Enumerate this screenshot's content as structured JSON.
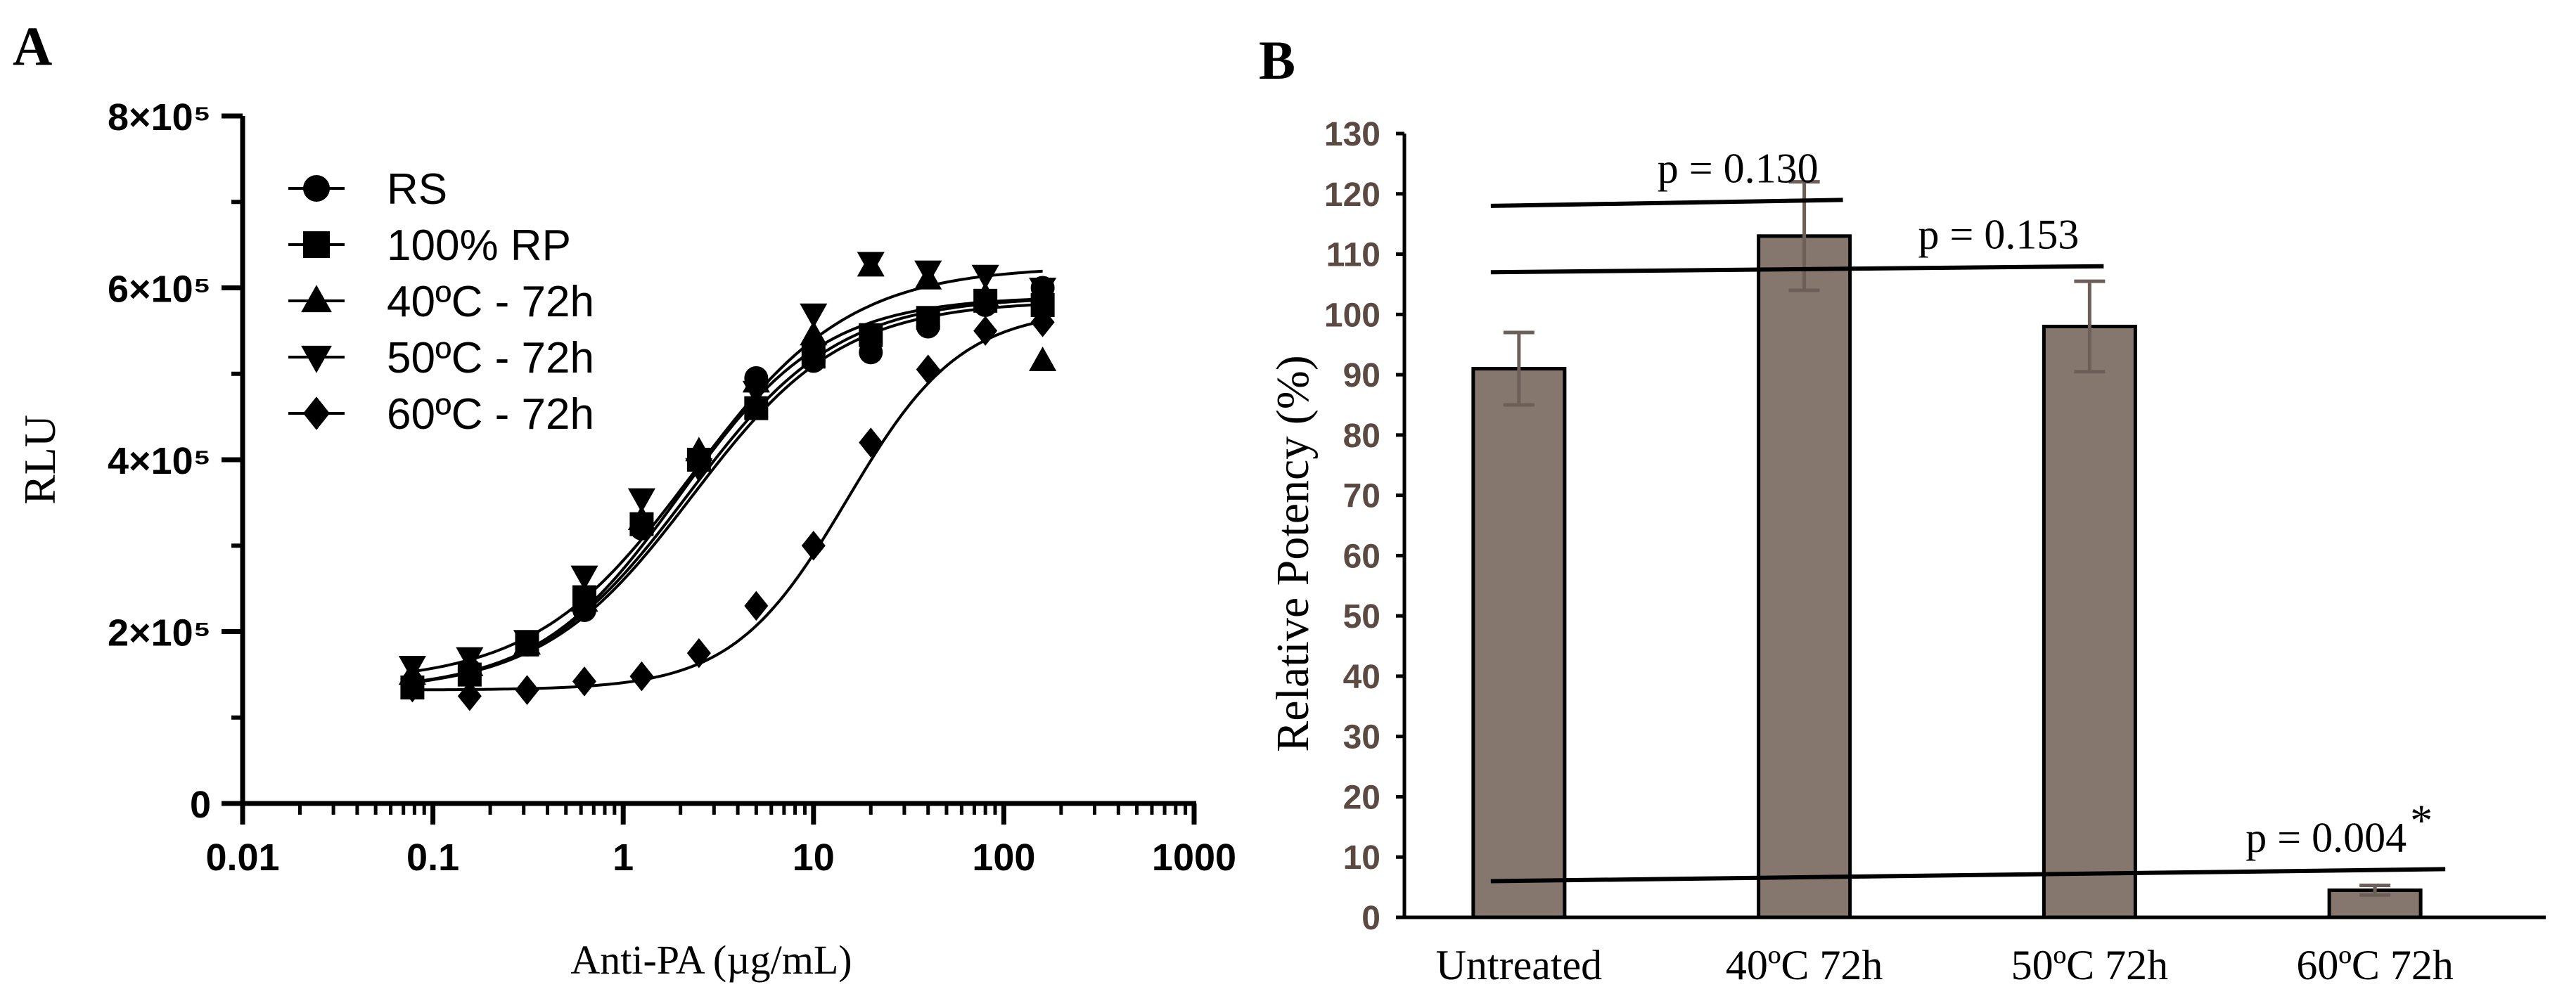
{
  "chart_data": [
    {
      "panel": "A",
      "type": "scatter",
      "xscale": "log",
      "xlabel": "Anti-PA (µg/mL)",
      "ylabel": "RLU",
      "xlim": [
        0.01,
        1000
      ],
      "ylim": [
        0,
        800000
      ],
      "xticks": [
        {
          "value": 0.01,
          "label": "0.01"
        },
        {
          "value": 0.1,
          "label": "0.1"
        },
        {
          "value": 1,
          "label": "1"
        },
        {
          "value": 10,
          "label": "10"
        },
        {
          "value": 100,
          "label": "100"
        },
        {
          "value": 1000,
          "label": "1000"
        }
      ],
      "yticks": [
        {
          "value": 0,
          "label": "0"
        },
        {
          "value": 200000,
          "label": "2×10⁵"
        },
        {
          "value": 400000,
          "label": "4×10⁵"
        },
        {
          "value": 600000,
          "label": "6×10⁵"
        },
        {
          "value": 800000,
          "label": "8×10⁵"
        }
      ],
      "legend_position": "top-left",
      "x": [
        0.078,
        0.156,
        0.3125,
        0.625,
        1.25,
        2.5,
        5,
        10,
        20,
        40,
        80,
        160
      ],
      "series": [
        {
          "name": "RS",
          "marker": "circle",
          "values": [
            140000,
            155000,
            185000,
            225000,
            320000,
            400000,
            495000,
            515000,
            525000,
            555000,
            580000,
            600000
          ],
          "fit": {
            "bottom": 130000,
            "top": 590000,
            "ec50": 2.2,
            "hill": 1.1
          }
        },
        {
          "name": "100% RP",
          "marker": "square",
          "values": [
            135000,
            150000,
            185000,
            240000,
            325000,
            400000,
            460000,
            520000,
            545000,
            565000,
            585000,
            580000
          ],
          "fit": {
            "bottom": 130000,
            "top": 585000,
            "ec50": 2.3,
            "hill": 1.1
          }
        },
        {
          "name": "40ºC - 72h",
          "marker": "triangle-up",
          "values": [
            150000,
            160000,
            185000,
            235000,
            330000,
            410000,
            490000,
            545000,
            625000,
            610000,
            590000,
            515000
          ],
          "fit": {
            "bottom": 130000,
            "top": 590000,
            "ec50": 2.0,
            "hill": 1.15
          }
        },
        {
          "name": "50ºC - 72h",
          "marker": "triangle-down",
          "values": [
            160000,
            170000,
            190000,
            265000,
            355000,
            390000,
            480000,
            570000,
            630000,
            620000,
            615000,
            600000
          ],
          "fit": {
            "bottom": 140000,
            "top": 625000,
            "ec50": 2.3,
            "hill": 1.05
          }
        },
        {
          "name": "60ºC - 72h",
          "marker": "diamond",
          "values": [
            135000,
            125000,
            132000,
            142000,
            148000,
            175000,
            230000,
            300000,
            420000,
            505000,
            550000,
            560000
          ],
          "fit": {
            "bottom": 132000,
            "top": 575000,
            "ec50": 15,
            "hill": 1.45
          }
        }
      ]
    },
    {
      "panel": "B",
      "type": "bar",
      "ylabel": "Relative Potency (%)",
      "ylim": [
        0,
        130
      ],
      "yticks": [
        0,
        10,
        20,
        30,
        40,
        50,
        60,
        70,
        80,
        90,
        100,
        110,
        120,
        130
      ],
      "categories": [
        "Untreated",
        "40ºC 72h",
        "50ºC 72h",
        "60ºC 72h"
      ],
      "values": [
        91,
        113,
        98,
        4.5
      ],
      "errors": [
        6,
        9,
        7.5,
        0.8
      ],
      "bar_color": "#85776e",
      "annotations": [
        {
          "text": "p  = 0.130",
          "line_from": [
            0,
            118
          ],
          "line_to": [
            1.0,
            119
          ]
        },
        {
          "text": "p  = 0.153",
          "line_from": [
            0,
            107
          ],
          "line_to": [
            2.0,
            108
          ]
        },
        {
          "text": "p  = 0.004",
          "mark": "*",
          "line_from": [
            0,
            6
          ],
          "line_to": [
            3.0,
            8
          ]
        }
      ]
    }
  ],
  "panels": {
    "a_label": "A",
    "b_label": "B"
  }
}
